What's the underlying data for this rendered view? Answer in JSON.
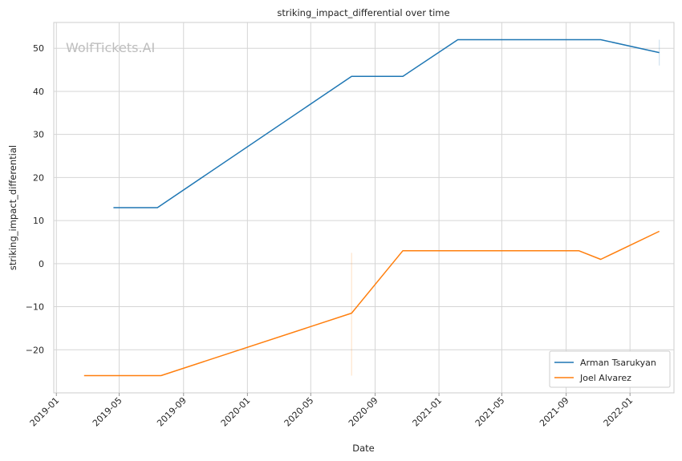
{
  "chart_data": {
    "type": "line",
    "title": "striking_impact_differential over time",
    "xlabel": "Date",
    "ylabel": "striking_impact_differential",
    "watermark": "WolfTickets.AI",
    "x_ticks": [
      "2019-01",
      "2019-05",
      "2019-09",
      "2020-01",
      "2020-05",
      "2020-09",
      "2021-01",
      "2021-05",
      "2021-09",
      "2022-01"
    ],
    "y_ticks": [
      50,
      40,
      30,
      20,
      10,
      0,
      -10,
      -20
    ],
    "y_tick_labels": [
      "50",
      "40",
      "30",
      "20",
      "10",
      "0",
      "−10",
      "−20"
    ],
    "xlim": [
      "2018-12-27",
      "2022-03-26"
    ],
    "ylim": [
      -30,
      56
    ],
    "grid": true,
    "legend_position": "bottom-right",
    "series": [
      {
        "name": "Arman Tsarukyan",
        "color": "#1f77b4",
        "x": [
          "2019-04-20",
          "2019-07-13",
          "2020-07-18",
          "2020-10-24",
          "2021-02-06",
          "2021-11-06",
          "2022-02-26"
        ],
        "y": [
          13,
          13,
          43.5,
          43.5,
          52,
          52,
          49
        ]
      },
      {
        "name": "Joel Alvarez",
        "color": "#ff7f0e",
        "x": [
          "2019-02-23",
          "2019-07-20",
          "2020-07-18",
          "2020-10-24",
          "2021-09-25",
          "2021-11-06",
          "2022-02-26"
        ],
        "y": [
          -26,
          -26,
          -11.5,
          3,
          3,
          1,
          7.5
        ]
      }
    ]
  }
}
